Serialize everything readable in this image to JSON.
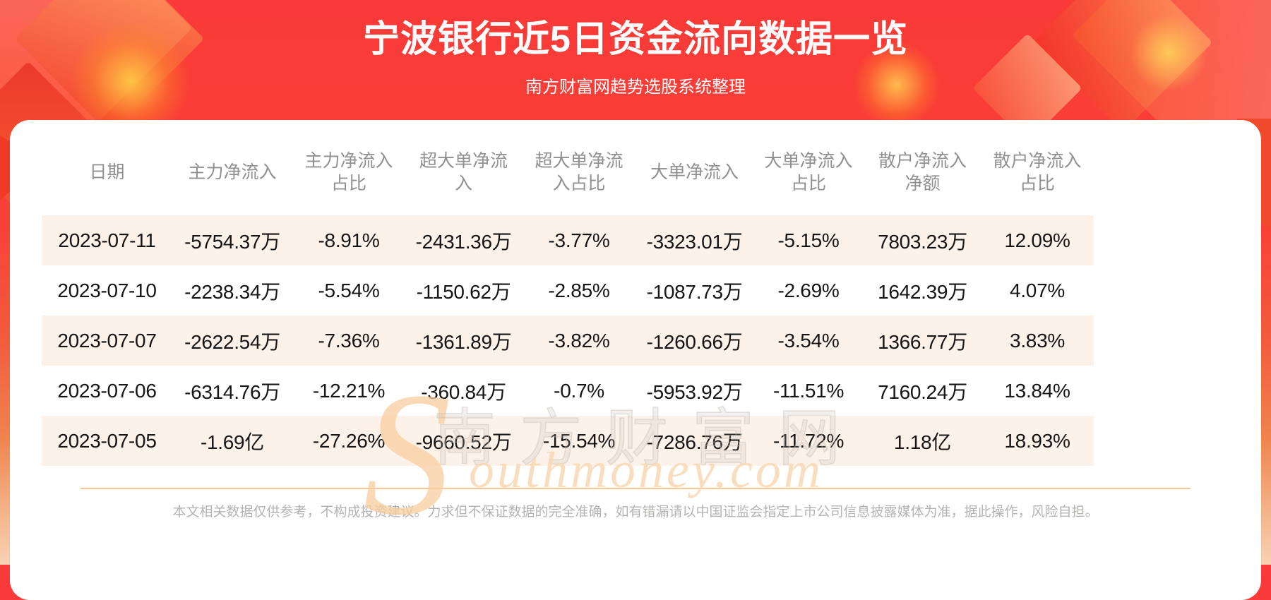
{
  "banner": {
    "title": "宁波银行近5日资金流向数据一览",
    "subtitle": "南方财富网趋势选股系统整理"
  },
  "chart_data": {
    "type": "table",
    "title": "宁波银行近5日资金流向数据一览",
    "columns": [
      "日期",
      "主力净流入",
      "主力净流入\n占比",
      "超大单净流\n入",
      "超大单净流\n入占比",
      "大单净流入",
      "大单净流入\n占比",
      "散户净流入\n净额",
      "散户净流入\n占比"
    ],
    "rows": [
      [
        "2023-07-11",
        "-5754.37万",
        "-8.91%",
        "-2431.36万",
        "-3.77%",
        "-3323.01万",
        "-5.15%",
        "7803.23万",
        "12.09%"
      ],
      [
        "2023-07-10",
        "-2238.34万",
        "-5.54%",
        "-1150.62万",
        "-2.85%",
        "-1087.73万",
        "-2.69%",
        "1642.39万",
        "4.07%"
      ],
      [
        "2023-07-07",
        "-2622.54万",
        "-7.36%",
        "-1361.89万",
        "-3.82%",
        "-1260.66万",
        "-3.54%",
        "1366.77万",
        "3.83%"
      ],
      [
        "2023-07-06",
        "-6314.76万",
        "-12.21%",
        "-360.84万",
        "-0.7%",
        "-5953.92万",
        "-11.51%",
        "7160.24万",
        "13.84%"
      ],
      [
        "2023-07-05",
        "-1.69亿",
        "-27.26%",
        "-9660.52万",
        "-15.54%",
        "-7286.76万",
        "-11.72%",
        "1.18亿",
        "18.93%"
      ]
    ]
  },
  "watermark": {
    "cn": "南方财富网",
    "s": "S",
    "en": "outhmoney.com"
  },
  "footer": {
    "disclaimer": "本文相关数据仅供参考，不构成投资建议。力求但不保证数据的完全准确，如有错漏请以中国证监会指定上市公司信息披露媒体为准，据此操作，风险自担。"
  },
  "colors": {
    "banner_red": "#f93a38",
    "row_alt": "#fdf2ea",
    "divider": "#f8c795",
    "header_text": "#909090",
    "cell_text": "#151515",
    "footer_text": "#b5b3b1"
  }
}
